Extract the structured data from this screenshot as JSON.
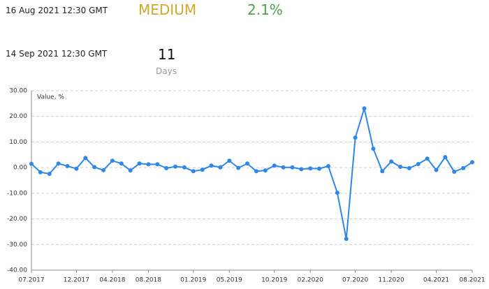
{
  "event": {
    "date": "16 Aug 2021 12:30 GMT",
    "importance": "MEDIUM",
    "value": "2.1%",
    "next_date": "14 Sep 2021 12:30 GMT",
    "countdown": "11",
    "countdown_unit": "Days"
  },
  "chart_data": {
    "type": "line",
    "y_label": "Value, %",
    "categories": [
      "07.2017",
      null,
      null,
      null,
      null,
      "12.2017",
      null,
      null,
      null,
      "04.2018",
      null,
      null,
      null,
      "08.2018",
      null,
      null,
      null,
      null,
      "01.2019",
      null,
      null,
      null,
      "05.2019",
      null,
      null,
      null,
      null,
      "10.2019",
      null,
      null,
      null,
      "02.2020",
      null,
      null,
      null,
      null,
      "07.2020",
      null,
      null,
      null,
      "11.2020",
      null,
      null,
      null,
      null,
      "04.2021",
      null,
      null,
      null,
      "08.2021"
    ],
    "series": [
      {
        "name": "Value, %",
        "color": "#2f87e6",
        "values": [
          1.5,
          -1.8,
          -2.4,
          1.6,
          0.6,
          -0.4,
          3.8,
          0.2,
          -1.0,
          2.7,
          1.6,
          -1.1,
          1.6,
          1.3,
          1.3,
          -0.2,
          0.4,
          0.1,
          -1.4,
          -0.8,
          0.8,
          0.1,
          2.7,
          -0.1,
          1.6,
          -1.4,
          -1.1,
          0.8,
          0.1,
          0.1,
          -0.6,
          -0.3,
          -0.4,
          0.6,
          -9.8,
          -27.8,
          11.7,
          23.1,
          7.4,
          -1.4,
          2.4,
          0.3,
          -0.2,
          1.4,
          3.5,
          -0.9,
          4.1,
          -1.6,
          -0.2,
          2.1
        ]
      }
    ],
    "ylim": [
      -40,
      30
    ],
    "yticks": [
      {
        "value": -40,
        "label": "-40.00"
      },
      {
        "value": -30,
        "label": "-30.00"
      },
      {
        "value": -20,
        "label": "-20.00"
      },
      {
        "value": -10,
        "label": "-10.00"
      },
      {
        "value": 0,
        "label": "0.00"
      },
      {
        "value": 10,
        "label": "10.00"
      },
      {
        "value": 20,
        "label": "20.00"
      },
      {
        "value": 30,
        "label": "30.00"
      }
    ],
    "grid": true
  }
}
